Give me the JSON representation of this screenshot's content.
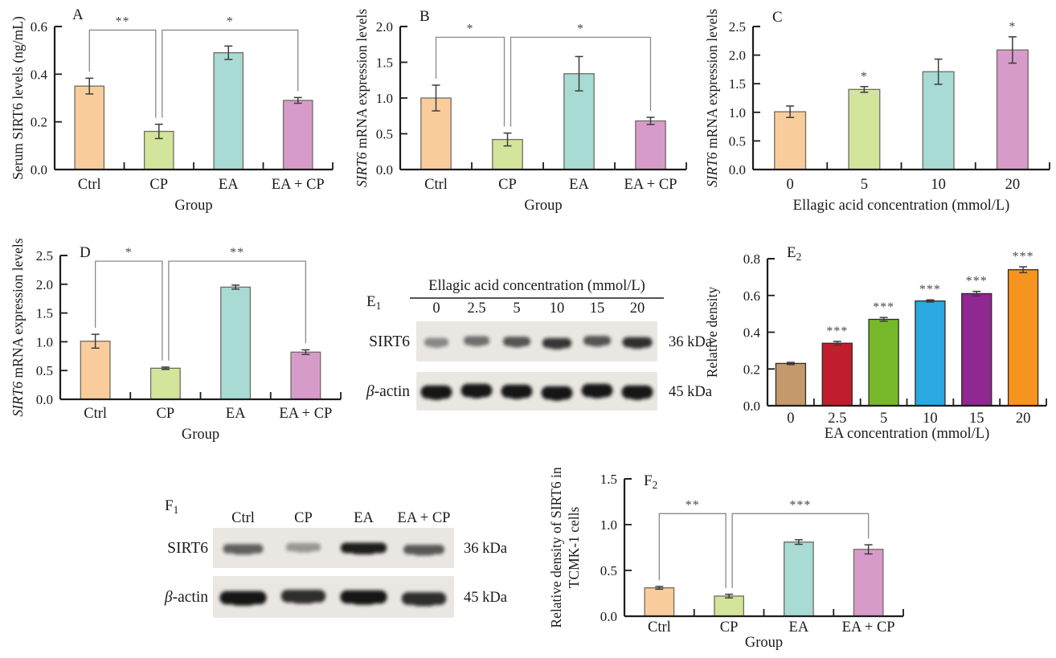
{
  "figure": {
    "description": "Multi-panel figure: SIRT6 levels under ellagic acid (EA) and cisplatin (CP) treatment",
    "background": "#FFFFFF"
  },
  "style": {
    "pastel_colors": [
      "#F9CD9B",
      "#D3E49B",
      "#A7DBD3",
      "#D79BC9"
    ],
    "pastel_stroke": "#6F6B64",
    "vivid_colors": [
      "#C49A6C",
      "#C01E2E",
      "#77B82B",
      "#2AA9E0",
      "#8F2890",
      "#F7941E"
    ],
    "vivid_stroke": "#2E2A26",
    "axis_color": "#1C1C1C",
    "error_color": "#3C3C3C",
    "bracket_color": "#8A8A8A",
    "star_color": "#4A4A4A",
    "text_color": "#1A1A1A",
    "blot_bg": "#EAE7E2",
    "band_color": "#161616"
  },
  "chart_data": [
    {
      "type": "bar",
      "panel": "A",
      "panel_sub": "",
      "ylabel_lines": [
        [
          {
            "t": "Serum SIRT6 levels (ng/mL)"
          }
        ]
      ],
      "xlabel": "Group",
      "categories": [
        "Ctrl",
        "CP",
        "EA",
        "EA + CP"
      ],
      "values": [
        0.35,
        0.16,
        0.49,
        0.29
      ],
      "errors": [
        0.033,
        0.03,
        0.028,
        0.012
      ],
      "ylim": [
        0,
        0.6
      ],
      "yticks": [
        "0.0",
        "0.2",
        "0.4",
        "0.6"
      ],
      "bar_colors": [
        "#F9CD9B",
        "#D3E49B",
        "#A7DBD3",
        "#D79BC9"
      ],
      "bar_stroke": "#6F6B64",
      "bar_stars": [
        "",
        "",
        "",
        ""
      ],
      "brackets": [
        {
          "from": 0,
          "to": 1,
          "label": "**",
          "y": 0.585,
          "to_dx": -4
        },
        {
          "from": 1,
          "to": 3,
          "label": "*",
          "y": 0.585,
          "from_dx": 4
        }
      ]
    },
    {
      "type": "bar",
      "panel": "B",
      "panel_sub": "",
      "ylabel_lines": [
        [
          {
            "t": "SIRT6",
            "i": true
          },
          {
            "t": " mRNA expression levels"
          }
        ]
      ],
      "xlabel": "Group",
      "categories": [
        "Ctrl",
        "CP",
        "EA",
        "EA + CP"
      ],
      "values": [
        1.0,
        0.42,
        1.34,
        0.68
      ],
      "errors": [
        0.18,
        0.09,
        0.24,
        0.05
      ],
      "ylim": [
        0,
        2.0
      ],
      "yticks": [
        "0.0",
        "0.5",
        "1.0",
        "1.5",
        "2.0"
      ],
      "bar_colors": [
        "#F9CD9B",
        "#D3E49B",
        "#A7DBD3",
        "#D79BC9"
      ],
      "bar_stroke": "#6F6B64",
      "bar_stars": [
        "",
        "",
        "",
        ""
      ],
      "brackets": [
        {
          "from": 0,
          "to": 1,
          "label": "*",
          "y": 1.85,
          "to_dx": -4
        },
        {
          "from": 1,
          "to": 3,
          "label": "*",
          "y": 1.85,
          "from_dx": 4
        }
      ]
    },
    {
      "type": "bar",
      "panel": "C",
      "panel_sub": "",
      "ylabel_lines": [
        [
          {
            "t": "SIRT6",
            "i": true
          },
          {
            "t": " mRNA expression levels"
          }
        ]
      ],
      "xlabel": "Ellagic acid concentration (mmol/L)",
      "categories": [
        "0",
        "5",
        "10",
        "20"
      ],
      "values": [
        1.01,
        1.4,
        1.71,
        2.09
      ],
      "errors": [
        0.1,
        0.05,
        0.22,
        0.23
      ],
      "ylim": [
        0,
        2.5
      ],
      "yticks": [
        "0.0",
        "0.5",
        "1.0",
        "1.5",
        "2.0",
        "2.5"
      ],
      "bar_colors": [
        "#F9CD9B",
        "#D3E49B",
        "#A7DBD3",
        "#D79BC9"
      ],
      "bar_stroke": "#6F6B64",
      "bar_stars": [
        "",
        "*",
        "",
        "*"
      ],
      "brackets": []
    },
    {
      "type": "bar",
      "panel": "D",
      "panel_sub": "",
      "ylabel_lines": [
        [
          {
            "t": "SIRT6",
            "i": true
          },
          {
            "t": " mRNA expression levels"
          }
        ]
      ],
      "xlabel": "Group",
      "categories": [
        "Ctrl",
        "CP",
        "EA",
        "EA + CP"
      ],
      "values": [
        1.01,
        0.54,
        1.95,
        0.82
      ],
      "errors": [
        0.12,
        0.02,
        0.035,
        0.04
      ],
      "ylim": [
        0,
        2.5
      ],
      "yticks": [
        "0.0",
        "0.5",
        "1.0",
        "1.5",
        "2.0",
        "2.5"
      ],
      "bar_colors": [
        "#F9CD9B",
        "#D3E49B",
        "#A7DBD3",
        "#D79BC9"
      ],
      "bar_stroke": "#6F6B64",
      "bar_stars": [
        "",
        "",
        "",
        ""
      ],
      "brackets": [
        {
          "from": 0,
          "to": 1,
          "label": "*",
          "y": 2.4,
          "to_dx": -4
        },
        {
          "from": 1,
          "to": 3,
          "label": "**",
          "y": 2.4,
          "from_dx": 4
        }
      ]
    },
    {
      "type": "blot",
      "panel": "E",
      "panel_sub": "1",
      "header": "Ellagic acid concentration (mmol/L)",
      "lanes": [
        "0",
        "2.5",
        "5",
        "10",
        "15",
        "20"
      ],
      "rows": [
        {
          "label": [
            {
              "t": "SIRT6"
            }
          ],
          "kda": "36 kDa",
          "intensities": [
            0.3,
            0.45,
            0.62,
            0.8,
            0.62,
            0.85
          ]
        },
        {
          "label": [
            {
              "t": "β",
              "i": true
            },
            {
              "t": "-actin"
            }
          ],
          "kda": "45 kDa",
          "intensities": [
            1,
            1,
            1,
            1,
            1,
            1
          ]
        }
      ]
    },
    {
      "type": "bar",
      "panel": "E",
      "panel_sub": "2",
      "ylabel_lines": [
        [
          {
            "t": "Relative density"
          }
        ]
      ],
      "xlabel": "EA concentration (mmol/L)",
      "categories": [
        "0",
        "2.5",
        "5",
        "10",
        "15",
        "20"
      ],
      "values": [
        0.23,
        0.34,
        0.47,
        0.57,
        0.61,
        0.74
      ],
      "errors": [
        0.006,
        0.01,
        0.01,
        0.006,
        0.012,
        0.016
      ],
      "ylim": [
        0,
        0.8
      ],
      "yticks": [
        "0.0",
        "0.2",
        "0.4",
        "0.6",
        "0.8"
      ],
      "bar_colors": [
        "#C49A6C",
        "#C01E2E",
        "#77B82B",
        "#2AA9E0",
        "#8F2890",
        "#F7941E"
      ],
      "bar_stroke": "#2E2A26",
      "bar_stars": [
        "",
        "***",
        "***",
        "***",
        "***",
        "***"
      ],
      "brackets": []
    },
    {
      "type": "blot",
      "panel": "F",
      "panel_sub": "1",
      "header": null,
      "lanes": [
        "Ctrl",
        "CP",
        "EA",
        "EA + CP"
      ],
      "rows": [
        {
          "label": [
            {
              "t": "SIRT6"
            }
          ],
          "kda": "36 kDa",
          "intensities": [
            0.55,
            0.2,
            0.95,
            0.6
          ]
        },
        {
          "label": [
            {
              "t": "β",
              "i": true
            },
            {
              "t": "-actin"
            }
          ],
          "kda": "45 kDa",
          "intensities": [
            1,
            0.85,
            1,
            0.85
          ]
        }
      ]
    },
    {
      "type": "bar",
      "panel": "F",
      "panel_sub": "2",
      "ylabel_lines": [
        [
          {
            "t": "Relative density of SIRT6 in"
          }
        ],
        [
          {
            "t": "TCMK-1 cells"
          }
        ]
      ],
      "xlabel": "Group",
      "categories": [
        "Ctrl",
        "CP",
        "EA",
        "EA + CP"
      ],
      "values": [
        0.31,
        0.22,
        0.81,
        0.73
      ],
      "errors": [
        0.015,
        0.02,
        0.025,
        0.05
      ],
      "ylim": [
        0,
        1.5
      ],
      "yticks": [
        "0.0",
        "0.5",
        "1.0",
        "1.5"
      ],
      "bar_colors": [
        "#F9CD9B",
        "#D3E49B",
        "#A7DBD3",
        "#D79BC9"
      ],
      "bar_stroke": "#6F6B64",
      "bar_stars": [
        "",
        "",
        "",
        ""
      ],
      "brackets": [
        {
          "from": 0,
          "to": 1,
          "label": "**",
          "y": 1.12,
          "to_dx": -4
        },
        {
          "from": 1,
          "to": 3,
          "label": "***",
          "y": 1.12,
          "from_dx": 4
        }
      ]
    }
  ]
}
